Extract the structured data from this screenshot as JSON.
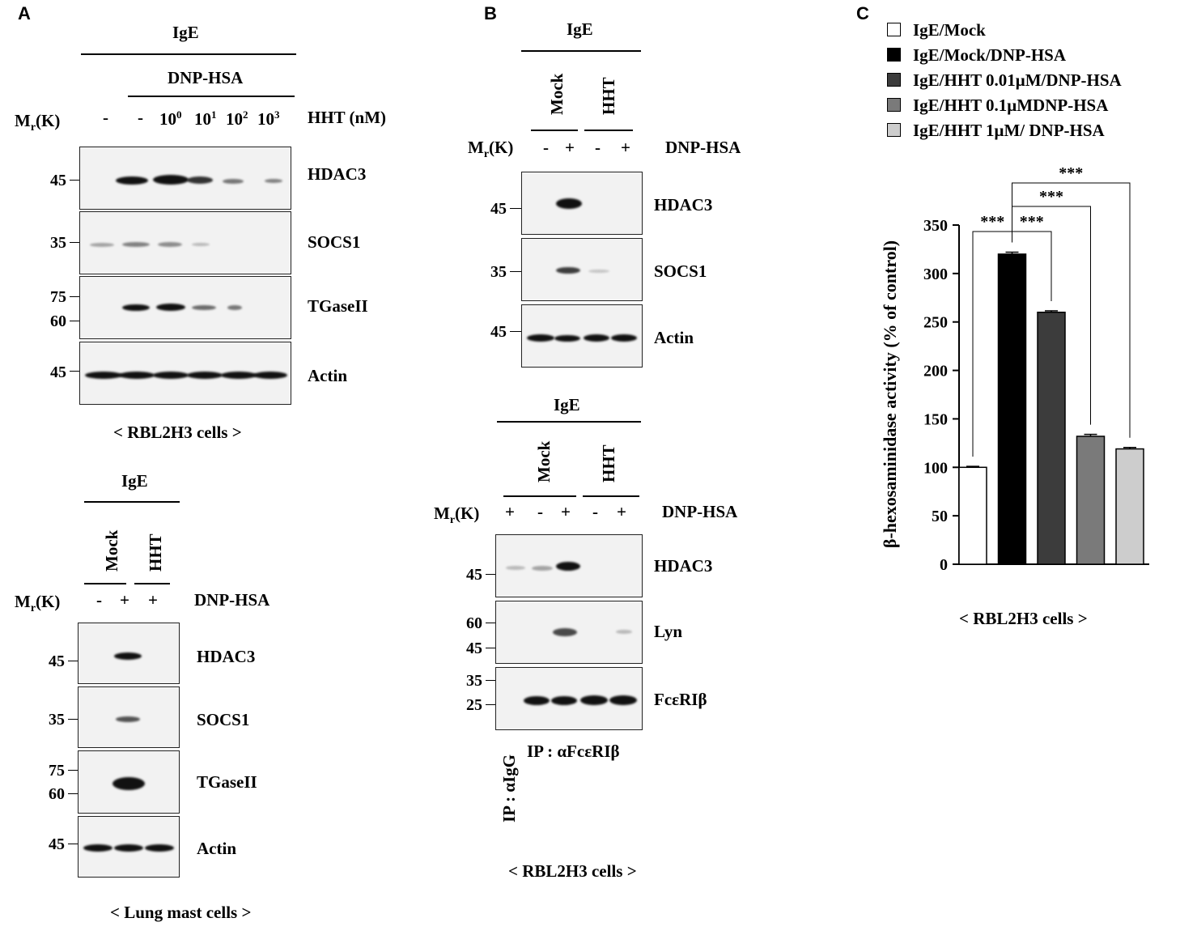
{
  "panels": {
    "a": {
      "letter": "A",
      "top": {
        "ige": "IgE",
        "dnp": "DNP-HSA",
        "mr": "M",
        "mr_sub": "r",
        "mr_tail": "(K)",
        "lanes": [
          "-",
          "-",
          "10",
          "10",
          "10",
          "10"
        ],
        "lane_sups": [
          "",
          "",
          "0",
          "1",
          "2",
          "3"
        ],
        "treatment": "HHT (nM)",
        "blots": [
          {
            "protein": "HDAC3",
            "markers": [
              "45"
            ]
          },
          {
            "protein": "SOCS1",
            "markers": [
              "35"
            ]
          },
          {
            "protein": "TGaseII",
            "markers": [
              "75",
              "60"
            ]
          },
          {
            "protein": "Actin",
            "markers": [
              "45"
            ]
          }
        ],
        "caption": "< RBL2H3 cells >"
      },
      "bottom": {
        "ige": "IgE",
        "group_mock": "Mock",
        "group_hht": "HHT",
        "mr": "M",
        "mr_sub": "r",
        "mr_tail": "(K)",
        "signs": [
          "-",
          "+",
          "+"
        ],
        "treatment": "DNP-HSA",
        "blots": [
          {
            "protein": "HDAC3",
            "markers": [
              "45"
            ]
          },
          {
            "protein": "SOCS1",
            "markers": [
              "35"
            ]
          },
          {
            "protein": "TGaseII",
            "markers": [
              "75",
              "60"
            ]
          },
          {
            "protein": "Actin",
            "markers": [
              "45"
            ]
          }
        ],
        "caption": "< Lung mast cells >"
      }
    },
    "b": {
      "letter": "B",
      "top": {
        "ige": "IgE",
        "group_mock": "Mock",
        "group_hht": "HHT",
        "mr": "M",
        "mr_sub": "r",
        "mr_tail": "(K)",
        "signs": [
          "-",
          "+",
          "-",
          "+"
        ],
        "treatment": "DNP-HSA",
        "blots": [
          {
            "protein": "HDAC3",
            "markers": [
              "45"
            ]
          },
          {
            "protein": "SOCS1",
            "markers": [
              "35"
            ]
          },
          {
            "protein": "Actin",
            "markers": [
              "45"
            ]
          }
        ]
      },
      "bottom": {
        "ige": "IgE",
        "group_mock": "Mock",
        "group_hht": "HHT",
        "mr": "M",
        "mr_sub": "r",
        "mr_tail": "(K)",
        "signs": [
          "+",
          "-",
          "+",
          "-",
          "+"
        ],
        "treatment": "DNP-HSA",
        "blots": [
          {
            "protein": "HDAC3",
            "markers": [
              "45"
            ]
          },
          {
            "protein": "Lyn",
            "markers": [
              "60",
              "45"
            ]
          },
          {
            "protein": "FcεRIβ",
            "markers": [
              "35",
              "25"
            ]
          }
        ],
        "ip_igg": "IP : αIgG",
        "ip_fc": "IP : αFcεRIβ",
        "caption": "< RBL2H3 cells >"
      }
    },
    "c": {
      "letter": "C",
      "caption": "< RBL2H3 cells >"
    }
  },
  "chart_data": {
    "type": "bar",
    "categories": [
      "IgE/Mock",
      "IgE/Mock/DNP-HSA",
      "IgE/HHT 0.01μM/DNP-HSA",
      "IgE/HHT 0.1μMDNP-HSA",
      "IgE/HHT 1μM/ DNP-HSA"
    ],
    "values": [
      100,
      320,
      260,
      132,
      119
    ],
    "errors": [
      1,
      2,
      1.5,
      2,
      1.5
    ],
    "colors": [
      "#ffffff",
      "#000000",
      "#3c3c3c",
      "#7a7a7a",
      "#cdcdcd"
    ],
    "legend": [
      "IgE/Mock",
      "IgE/Mock/DNP-HSA",
      "IgE/HHT 0.01μM/DNP-HSA",
      "IgE/HHT 0.1μMDNP-HSA",
      "IgE/HHT 1μM/ DNP-HSA"
    ],
    "legend_position": "top",
    "ylabel": "β-hexosaminidase activity  (% of control)",
    "xlabel": "",
    "ylim": [
      0,
      350
    ],
    "yticks": [
      0,
      50,
      100,
      150,
      200,
      250,
      300,
      350
    ],
    "grid": false,
    "significance": [
      {
        "pair": [
          0,
          1
        ],
        "label": "***"
      },
      {
        "pair": [
          1,
          2
        ],
        "label": "***"
      },
      {
        "pair": [
          1,
          3
        ],
        "label": "***"
      },
      {
        "pair": [
          1,
          4
        ],
        "label": "***"
      }
    ]
  }
}
